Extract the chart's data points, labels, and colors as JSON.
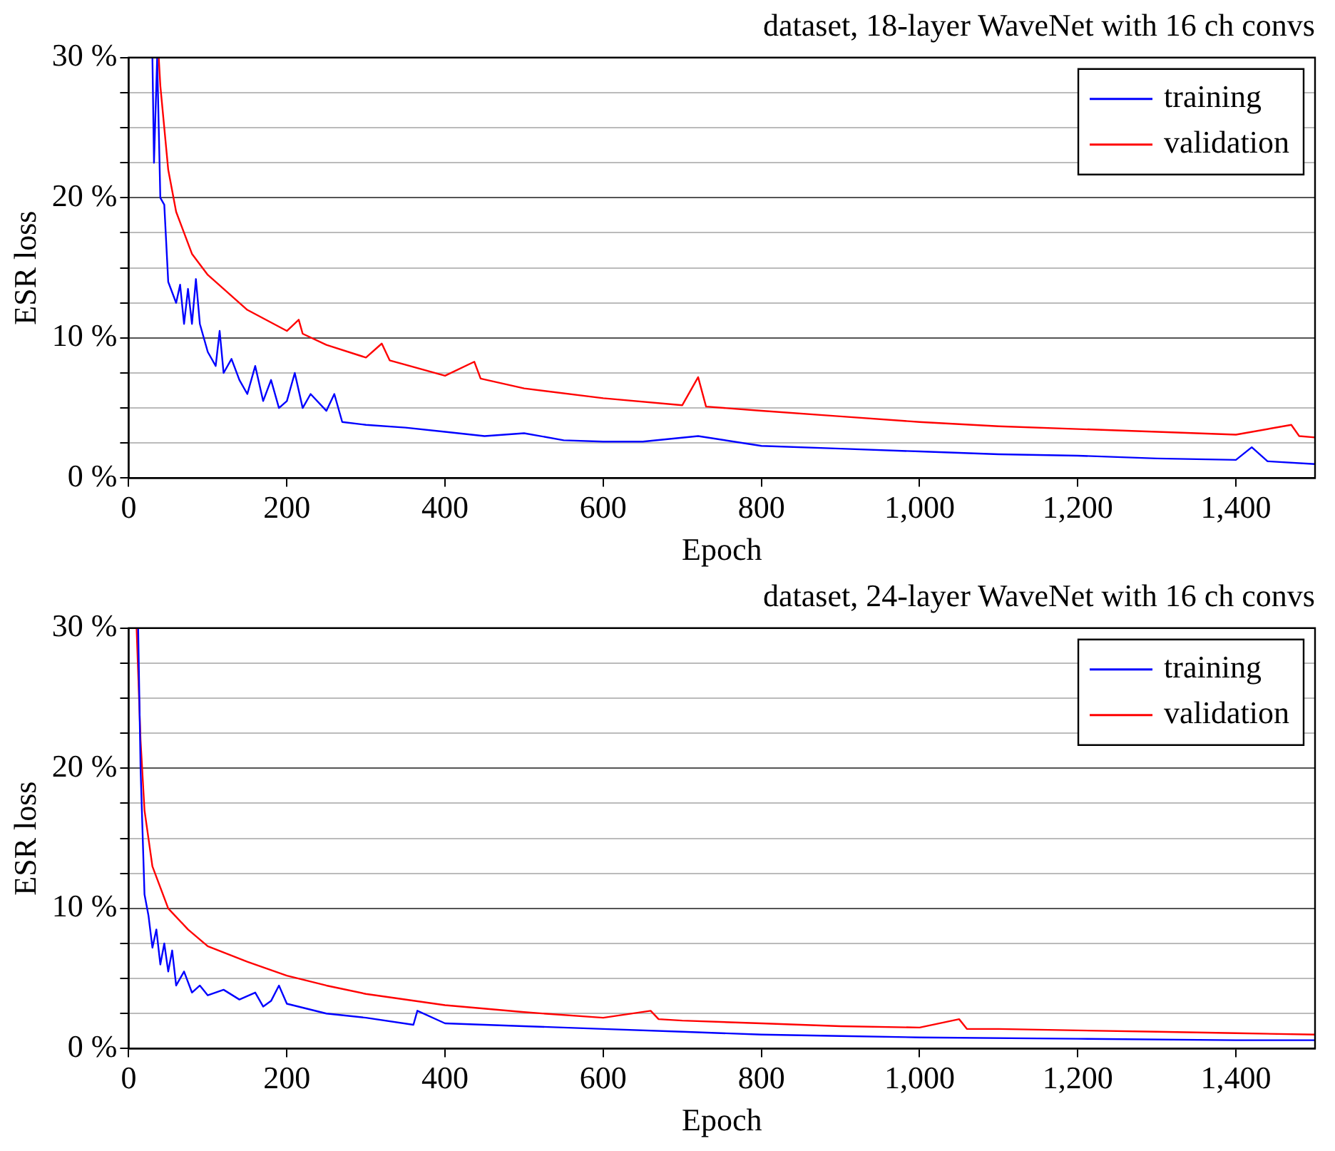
{
  "chart_data": [
    {
      "type": "line",
      "title": "dataset, 18-layer WaveNet with 16 ch convs",
      "xlabel": "Epoch",
      "ylabel": "ESR loss",
      "xlim": [
        0,
        1500
      ],
      "ylim": [
        0,
        30
      ],
      "xticks": [
        0,
        200,
        400,
        600,
        800,
        {
          "value": 1000,
          "label": "1,000"
        },
        {
          "value": 1200,
          "label": "1,200"
        },
        {
          "value": 1400,
          "label": "1,400"
        }
      ],
      "yticks": [
        {
          "value": 0,
          "label": "0 %"
        },
        {
          "value": 2.5,
          "label": null
        },
        {
          "value": 5,
          "label": null
        },
        {
          "value": 7.5,
          "label": null
        },
        {
          "value": 10,
          "label": "10 %"
        },
        {
          "value": 12.5,
          "label": null
        },
        {
          "value": 15,
          "label": null
        },
        {
          "value": 17.5,
          "label": null
        },
        {
          "value": 20,
          "label": "20 %"
        },
        {
          "value": 22.5,
          "label": null
        },
        {
          "value": 25,
          "label": null
        },
        {
          "value": 27.5,
          "label": null
        },
        {
          "value": 30,
          "label": "30 %"
        }
      ],
      "grid": "y",
      "legend": "top right",
      "line_style": "solid",
      "series": [
        {
          "name": "training",
          "color": "#0000ff",
          "x": [
            30,
            32,
            36,
            40,
            45,
            50,
            60,
            65,
            70,
            75,
            80,
            85,
            90,
            100,
            110,
            115,
            120,
            130,
            140,
            150,
            160,
            170,
            180,
            190,
            200,
            210,
            220,
            230,
            250,
            260,
            270,
            300,
            350,
            400,
            450,
            500,
            550,
            600,
            650,
            720,
            800,
            900,
            1000,
            1100,
            1200,
            1300,
            1400,
            1420,
            1440,
            1500
          ],
          "values": [
            30,
            22.5,
            30,
            20,
            19.5,
            14,
            12.5,
            13.8,
            11,
            13.5,
            11,
            14.2,
            11,
            9,
            8,
            10.5,
            7.5,
            8.5,
            7,
            6,
            8,
            5.5,
            7,
            5,
            5.5,
            7.5,
            5,
            6,
            4.8,
            6,
            4,
            3.8,
            3.6,
            3.3,
            3,
            3.2,
            2.7,
            2.6,
            2.6,
            3,
            2.3,
            2.1,
            1.9,
            1.7,
            1.6,
            1.4,
            1.3,
            2.2,
            1.2,
            1
          ]
        },
        {
          "name": "validation",
          "color": "#ff0000",
          "x": [
            38,
            40,
            50,
            60,
            80,
            100,
            150,
            200,
            215,
            220,
            250,
            300,
            320,
            330,
            400,
            437,
            445,
            500,
            600,
            700,
            720,
            730,
            800,
            900,
            1000,
            1100,
            1200,
            1300,
            1400,
            1470,
            1480,
            1500
          ],
          "values": [
            30,
            28,
            22,
            19,
            16,
            14.5,
            12,
            10.5,
            11.3,
            10.3,
            9.5,
            8.6,
            9.6,
            8.4,
            7.3,
            8.3,
            7.1,
            6.4,
            5.7,
            5.2,
            7.2,
            5.1,
            4.8,
            4.4,
            4,
            3.7,
            3.5,
            3.3,
            3.1,
            3.8,
            3,
            2.9
          ]
        }
      ]
    },
    {
      "type": "line",
      "title": "dataset, 24-layer WaveNet with 16 ch convs",
      "xlabel": "Epoch",
      "ylabel": "ESR loss",
      "xlim": [
        0,
        1500
      ],
      "ylim": [
        0,
        30
      ],
      "xticks": [
        0,
        200,
        400,
        600,
        800,
        {
          "value": 1000,
          "label": "1,000"
        },
        {
          "value": 1200,
          "label": "1,200"
        },
        {
          "value": 1400,
          "label": "1,400"
        }
      ],
      "yticks": [
        {
          "value": 0,
          "label": "0 %"
        },
        {
          "value": 2.5,
          "label": null
        },
        {
          "value": 5,
          "label": null
        },
        {
          "value": 7.5,
          "label": null
        },
        {
          "value": 10,
          "label": "10 %"
        },
        {
          "value": 12.5,
          "label": null
        },
        {
          "value": 15,
          "label": null
        },
        {
          "value": 17.5,
          "label": null
        },
        {
          "value": 20,
          "label": "20 %"
        },
        {
          "value": 22.5,
          "label": null
        },
        {
          "value": 25,
          "label": null
        },
        {
          "value": 27.5,
          "label": null
        },
        {
          "value": 30,
          "label": "30 %"
        }
      ],
      "grid": "y",
      "legend": "top right",
      "line_style": "solid",
      "series": [
        {
          "name": "training",
          "color": "#0000ff",
          "x": [
            12,
            15,
            20,
            25,
            30,
            35,
            40,
            45,
            50,
            55,
            60,
            70,
            80,
            90,
            100,
            120,
            140,
            160,
            170,
            180,
            190,
            200,
            250,
            300,
            360,
            365,
            400,
            500,
            600,
            700,
            800,
            900,
            1000,
            1200,
            1400,
            1500
          ],
          "values": [
            30,
            20,
            11,
            9.5,
            7.2,
            8.5,
            6,
            7.5,
            5.5,
            7,
            4.5,
            5.5,
            4,
            4.5,
            3.8,
            4.2,
            3.5,
            4,
            3,
            3.4,
            4.5,
            3.2,
            2.5,
            2.2,
            1.7,
            2.7,
            1.8,
            1.6,
            1.4,
            1.2,
            1,
            0.9,
            0.8,
            0.7,
            0.6,
            0.6
          ]
        },
        {
          "name": "validation",
          "color": "#ff0000",
          "x": [
            10,
            15,
            20,
            30,
            50,
            75,
            100,
            150,
            200,
            250,
            300,
            400,
            500,
            600,
            660,
            670,
            700,
            800,
            900,
            1000,
            1050,
            1060,
            1100,
            1200,
            1300,
            1400,
            1500
          ],
          "values": [
            30,
            22,
            17,
            13,
            10,
            8.5,
            7.3,
            6.2,
            5.2,
            4.5,
            3.9,
            3.1,
            2.6,
            2.2,
            2.7,
            2.1,
            2,
            1.8,
            1.6,
            1.5,
            2.1,
            1.4,
            1.4,
            1.3,
            1.2,
            1.1,
            1
          ]
        }
      ]
    }
  ]
}
